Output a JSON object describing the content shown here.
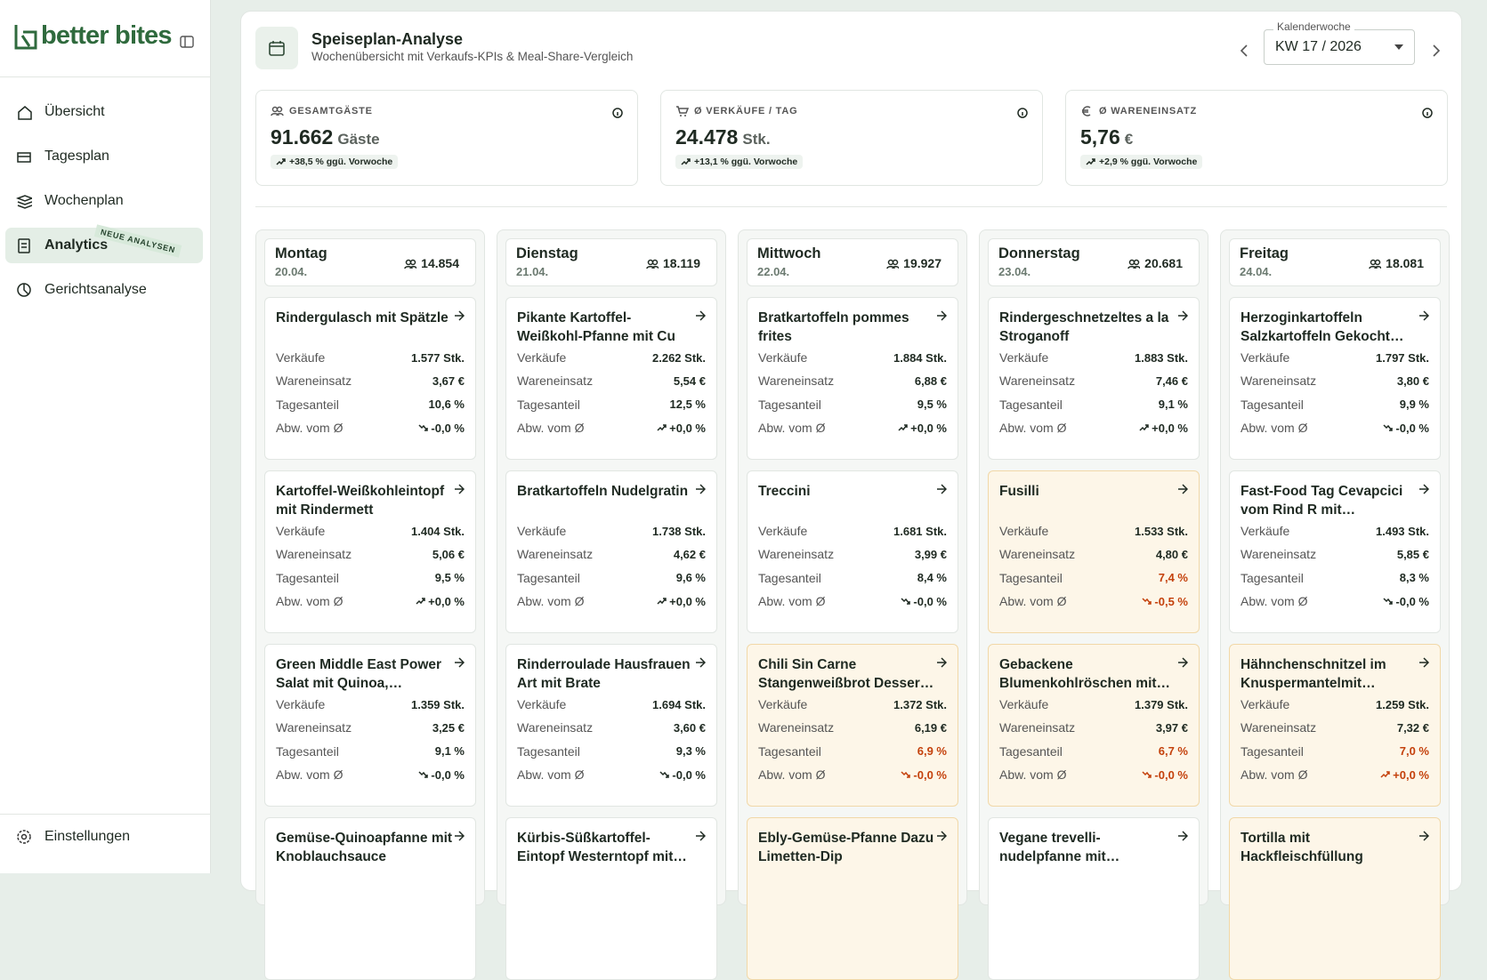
{
  "sidebar": {
    "logo": "better bites",
    "nav": [
      {
        "label": "Übersicht"
      },
      {
        "label": "Tagesplan"
      },
      {
        "label": "Wochenplan"
      },
      {
        "label": "Analytics",
        "badge": "NEUE ANALYSEN",
        "active": true
      },
      {
        "label": "Gerichtsanalyse"
      }
    ],
    "footer": "Einstellungen"
  },
  "header": {
    "title": "Speiseplan-Analyse",
    "subtitle": "Wochenübersicht mit Verkaufs-KPIs & Meal-Share-Vergleich",
    "week_label": "Kalenderwoche",
    "week": "KW 17 / 2026"
  },
  "kpis": [
    {
      "label": "GESAMTGÄSTE",
      "value": "91.662",
      "unit": "Gäste",
      "trend": "+38,5 % ggü. Vorwoche"
    },
    {
      "label": "Ø VERKÄUFE / TAG",
      "value": "24.478",
      "unit": "Stk.",
      "trend": "+13,1 % ggü. Vorwoche"
    },
    {
      "label": "Ø WARENEINSATZ",
      "value": "5,76",
      "unit": "€",
      "trend": "+2,9 % ggü. Vorwoche"
    }
  ],
  "metric_labels": [
    "Verkäufe",
    "Wareneinsatz",
    "Tagesanteil",
    "Abw. vom Ø"
  ],
  "days": [
    {
      "name": "Montag",
      "date": "20.04.",
      "guests": "14.854",
      "dishes": [
        {
          "name": "Rindergulasch mit Spätzle",
          "warning": false,
          "metrics": [
            "1.577 Stk.",
            "3,67 €",
            "10,6 %",
            "-0,0 %"
          ]
        },
        {
          "name": "Kartoffel-Weißkohleintopf mit Rindermett",
          "warning": false,
          "metrics": [
            "1.404 Stk.",
            "5,06 €",
            "9,5 %",
            "+0,0 %"
          ]
        },
        {
          "name": "Green Middle East Power Salat mit Quinoa,…",
          "warning": false,
          "metrics": [
            "1.359 Stk.",
            "3,25 €",
            "9,1 %",
            "-0,0 %"
          ]
        },
        {
          "name": "Gemüse-Quinoapfanne mit Knoblauchsauce",
          "warning": false
        }
      ]
    },
    {
      "name": "Dienstag",
      "date": "21.04.",
      "guests": "18.119",
      "dishes": [
        {
          "name": "Pikante Kartoffel-Weißkohl-Pfanne mit Cu",
          "warning": false,
          "metrics": [
            "2.262 Stk.",
            "5,54 €",
            "12,5 %",
            "+0,0 %"
          ]
        },
        {
          "name": "Bratkartoffeln Nudelgratin",
          "warning": false,
          "metrics": [
            "1.738 Stk.",
            "4,62 €",
            "9,6 %",
            "+0,0 %"
          ]
        },
        {
          "name": "Rinderroulade Hausfrauen Art mit Brate",
          "warning": false,
          "metrics": [
            "1.694 Stk.",
            "3,60 €",
            "9,3 %",
            "-0,0 %"
          ]
        },
        {
          "name": "Kürbis-Süßkartoffel-Eintopf Westerntopf mit…",
          "warning": false
        }
      ]
    },
    {
      "name": "Mittwoch",
      "date": "22.04.",
      "guests": "19.927",
      "dishes": [
        {
          "name": "Bratkartoffeln pommes frites",
          "warning": false,
          "metrics": [
            "1.884 Stk.",
            "6,88 €",
            "9,5 %",
            "+0,0 %"
          ]
        },
        {
          "name": "Treccini",
          "warning": false,
          "metrics": [
            "1.681 Stk.",
            "3,99 €",
            "8,4 %",
            "-0,0 %"
          ]
        },
        {
          "name": "Chili Sin Carne Stangenweißbrot Desser…",
          "warning": true,
          "metrics": [
            "1.372 Stk.",
            "6,19 €",
            "6,9 %",
            "-0,0 %"
          ]
        },
        {
          "name": "Ebly-Gemüse-Pfanne Dazu Limetten-Dip",
          "warning": true
        }
      ]
    },
    {
      "name": "Donnerstag",
      "date": "23.04.",
      "guests": "20.681",
      "dishes": [
        {
          "name": "Rindergeschnetzeltes a la Stroganoff",
          "warning": false,
          "metrics": [
            "1.883 Stk.",
            "7,46 €",
            "9,1 %",
            "+0,0 %"
          ]
        },
        {
          "name": "Fusilli",
          "warning": true,
          "metrics": [
            "1.533 Stk.",
            "4,80 €",
            "7,4 %",
            "-0,5 %"
          ]
        },
        {
          "name": "Gebackene Blumenkohlröschen mit…",
          "warning": true,
          "metrics": [
            "1.379 Stk.",
            "3,97 €",
            "6,7 %",
            "-0,0 %"
          ]
        },
        {
          "name": "Vegane trevelli-nudelpfanne mit…",
          "warning": false
        }
      ]
    },
    {
      "name": "Freitag",
      "date": "24.04.",
      "guests": "18.081",
      "dishes": [
        {
          "name": "Herzoginkartoffeln Salzkartoffeln Gekocht…",
          "warning": false,
          "metrics": [
            "1.797 Stk.",
            "3,80 €",
            "9,9 %",
            "-0,0 %"
          ]
        },
        {
          "name": "Fast-Food Tag Cevapcici vom Rind R mit…",
          "warning": false,
          "metrics": [
            "1.493 Stk.",
            "5,85 €",
            "8,3 %",
            "-0,0 %"
          ]
        },
        {
          "name": "Hähnchenschnitzel im Knuspermantelmit…",
          "warning": true,
          "metrics": [
            "1.259 Stk.",
            "7,32 €",
            "7,0 %",
            "+0,0 %"
          ]
        },
        {
          "name": "Tortilla mit Hackfleischfüllung",
          "warning": true
        }
      ]
    }
  ]
}
